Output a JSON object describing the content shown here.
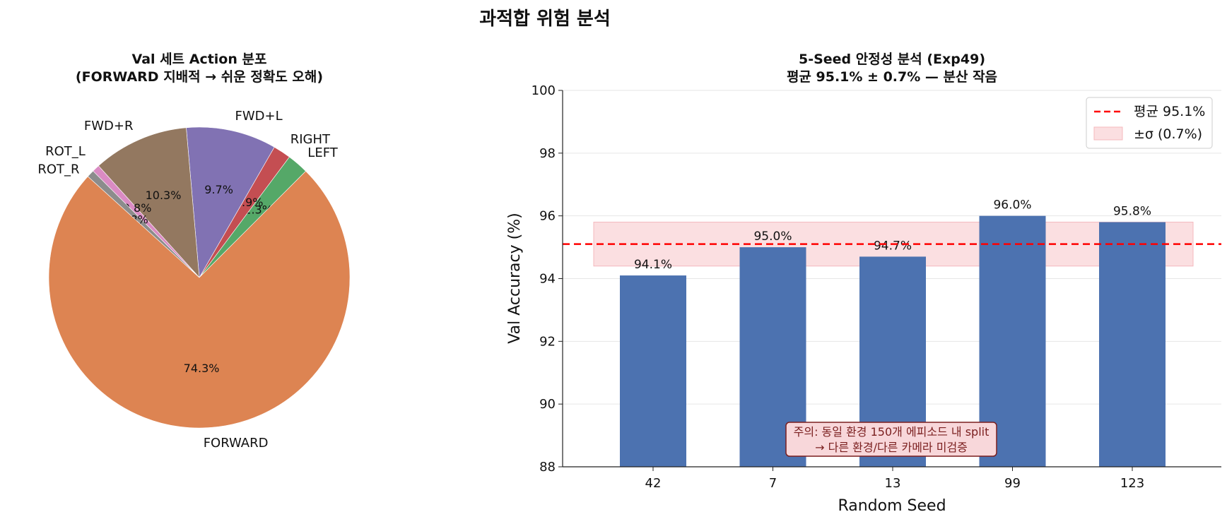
{
  "suptitle": "과적합 위험 분석",
  "chart_data": [
    {
      "type": "pie",
      "title": "Val 세트 Action 분포",
      "subtitle": "(FORWARD 지배적 → 쉬운 정확도 오해)",
      "slices": [
        {
          "label": "LEFT",
          "value": 2.3,
          "pct_label": "2.3%",
          "color": "#55a868"
        },
        {
          "label": "RIGHT",
          "value": 1.9,
          "pct_label": "1.9%",
          "color": "#c44e52"
        },
        {
          "label": "FWD+L",
          "value": 9.7,
          "pct_label": "9.7%",
          "color": "#8172b3"
        },
        {
          "label": "FWD+R",
          "value": 10.3,
          "pct_label": "10.3%",
          "color": "#937860"
        },
        {
          "label": "ROT_L",
          "value": 0.8,
          "pct_label": "0.8%",
          "color": "#da8bc3"
        },
        {
          "label": "ROT_R",
          "value": 0.8,
          "pct_label": "0.8%",
          "color": "#8c8c8c"
        },
        {
          "label": "FORWARD",
          "value": 74.3,
          "pct_label": "74.3%",
          "color": "#dd8452"
        }
      ]
    },
    {
      "type": "bar",
      "title": "5-Seed 안정성 분석 (Exp49)",
      "subtitle": "평균 95.1% ± 0.7% — 분산 작음",
      "xlabel": "Random Seed",
      "ylabel": "Val Accuracy (%)",
      "categories": [
        "42",
        "7",
        "13",
        "99",
        "123"
      ],
      "values": [
        94.1,
        95.0,
        94.7,
        96.0,
        95.8
      ],
      "value_labels": [
        "94.1%",
        "95.0%",
        "94.7%",
        "96.0%",
        "95.8%"
      ],
      "ylim": [
        88,
        100
      ],
      "yticks": [
        "88",
        "90",
        "92",
        "94",
        "96",
        "98",
        "100"
      ],
      "mean": 95.1,
      "std": 0.7,
      "bar_color": "#4c72b0",
      "mean_color": "#ff0000",
      "band_color": "#f8c8cc",
      "legend": {
        "mean_label": "평균 95.1%",
        "band_label": "±σ (0.7%)",
        "position": "top-right"
      },
      "grid": "y",
      "annotation": {
        "line1": "주의: 동일 환경 150개 에피소드 내 split",
        "line2": "→ 다른 환경/다른 카메라 미검증"
      }
    }
  ]
}
